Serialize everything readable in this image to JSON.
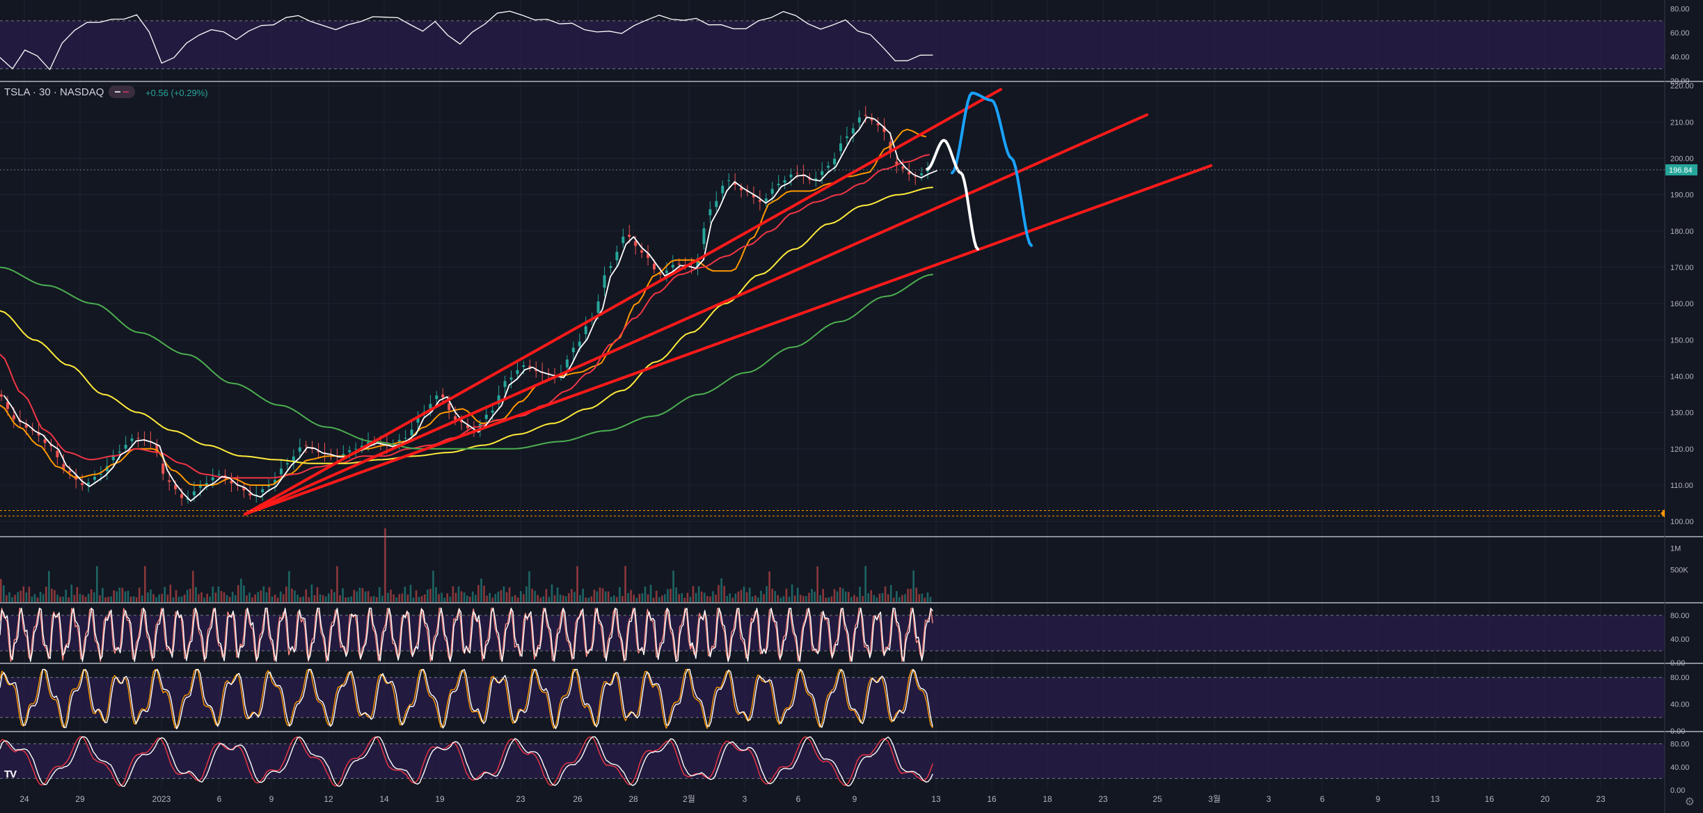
{
  "header": {
    "symbol": "TSLA · 30 · NASDAQ",
    "change": "+0.56 (+0.29%)"
  },
  "colors": {
    "background": "#131722",
    "grid": "#1f2433",
    "panel_fill": "#2a1e4a",
    "red_trend": "#ff1a1a",
    "blue_drawing": "#1aa3ff",
    "white_drawing": "#ffffff",
    "ma_orange": "#ff9800",
    "ma_red": "#f23645",
    "ma_yellow": "#ffeb3b",
    "ma_green": "#4caf50",
    "price_badge": "#26a69a",
    "up": "#26a69a",
    "down": "#ef5350"
  },
  "icons": [
    "tradingview-logo-icon",
    "gear-icon"
  ],
  "chart_data": [
    {
      "type": "line",
      "panel": "rsi",
      "y_ticks": [
        "80.00",
        "60.00",
        "40.00",
        "20.00"
      ],
      "ylim": [
        20,
        85
      ],
      "bands": [
        30,
        70
      ],
      "series": [
        {
          "values": [
            38,
            30,
            47,
            40,
            30,
            50,
            62,
            70,
            68,
            72,
            70,
            75,
            62,
            34,
            40,
            50,
            58,
            64,
            60,
            55,
            60,
            66,
            68,
            72,
            75,
            68,
            66,
            64,
            66,
            70,
            72,
            73,
            74,
            66,
            62,
            68,
            58,
            52,
            60,
            68,
            75,
            78,
            76,
            70,
            72,
            66,
            68,
            64,
            60,
            62,
            58,
            66,
            72,
            74,
            72,
            69,
            72,
            68,
            66,
            64,
            62,
            70,
            74,
            77,
            75,
            66,
            63,
            68,
            70,
            62,
            57,
            48,
            38,
            36,
            42,
            40
          ]
        }
      ]
    },
    {
      "type": "line",
      "panel": "price",
      "y_ticks": [
        "220.00",
        "210.00",
        "200.00",
        "190.00",
        "180.00",
        "170.00",
        "160.00",
        "150.00",
        "140.00",
        "130.00",
        "120.00",
        "110.00",
        "100.00"
      ],
      "ylim": [
        96,
        221
      ],
      "last_price": "196.84",
      "x_ticks": [
        "24",
        "29",
        "2023",
        "6",
        "9",
        "12",
        "14",
        "19",
        "23",
        "26",
        "28",
        "2월",
        "3",
        "6",
        "9",
        "13",
        "16",
        "18",
        "23",
        "25",
        "3월",
        "3",
        "6",
        "9",
        "13",
        "16",
        "20",
        "23"
      ],
      "price_series": [
        135,
        128,
        125,
        121,
        114,
        110,
        113,
        119,
        123,
        122,
        111,
        106,
        110,
        113,
        110,
        107,
        110,
        116,
        121,
        119,
        118,
        120,
        122,
        121,
        123,
        130,
        135,
        128,
        125,
        130,
        139,
        143,
        141,
        140,
        148,
        156,
        170,
        179,
        174,
        168,
        171,
        170,
        186,
        194,
        191,
        188,
        193,
        196,
        194,
        198,
        206,
        212,
        209,
        198,
        195,
        197
      ],
      "moving_averages": [
        {
          "color": "ma_orange",
          "values": [
            132,
            126,
            121,
            115,
            112,
            113,
            116,
            120,
            120,
            114,
            110,
            110,
            112,
            110,
            110,
            113,
            117,
            118,
            118,
            120,
            121,
            122,
            126,
            130,
            131,
            127,
            128,
            133,
            138,
            140,
            141,
            143,
            150,
            160,
            168,
            172,
            172,
            169,
            169,
            178,
            188,
            191,
            191,
            193,
            195,
            196,
            203,
            208,
            206
          ]
        },
        {
          "color": "ma_red",
          "values": [
            146,
            135,
            125,
            119,
            117,
            118,
            120,
            119,
            116,
            113,
            112,
            112,
            112,
            113,
            115,
            116,
            118,
            118,
            120,
            121,
            123,
            126,
            128,
            129,
            132,
            136,
            141,
            149,
            156,
            163,
            168,
            170,
            173,
            176,
            180,
            185,
            188,
            190,
            193,
            197,
            199,
            201
          ]
        },
        {
          "color": "ma_yellow",
          "values": [
            158,
            150,
            143,
            135,
            130,
            125,
            121,
            118,
            117,
            116,
            116,
            117,
            118,
            119,
            121,
            124,
            127,
            131,
            136,
            144,
            152,
            160,
            168,
            175,
            182,
            187,
            190,
            192
          ]
        },
        {
          "color": "ma_green",
          "values": [
            170,
            165,
            160,
            152,
            146,
            138,
            132,
            126,
            122,
            120,
            120,
            120,
            122,
            125,
            129,
            135,
            141,
            148,
            155,
            162,
            168
          ]
        }
      ],
      "trend_lines": [
        {
          "from": [
            "1/8",
            102
          ],
          "to": [
            "2/15",
            219
          ]
        },
        {
          "from": [
            "1/8",
            102
          ],
          "to": [
            "2/24",
            212
          ]
        },
        {
          "from": [
            "1/8",
            102
          ],
          "to": [
            "3/3",
            198
          ]
        }
      ],
      "drawings": [
        {
          "color": "blue_drawing",
          "values": [
            196,
            218,
            216,
            200,
            176
          ]
        },
        {
          "color": "white_drawing",
          "values": [
            197,
            205,
            196,
            175
          ]
        }
      ]
    },
    {
      "type": "bar",
      "panel": "volume",
      "y_ticks": [
        "1M",
        "500K"
      ]
    },
    {
      "type": "line",
      "panel": "stochastic-rsi",
      "y_ticks": [
        "80.00",
        "40.00",
        "0.00"
      ],
      "ylim": [
        0,
        100
      ]
    },
    {
      "type": "line",
      "panel": "stochastic-1",
      "y_ticks": [
        "80.00",
        "40.00",
        "0.00"
      ],
      "ylim": [
        0,
        100
      ]
    },
    {
      "type": "line",
      "panel": "stochastic-2",
      "y_ticks": [
        "80.00",
        "40.00",
        "0.00"
      ],
      "ylim": [
        0,
        100
      ]
    }
  ]
}
